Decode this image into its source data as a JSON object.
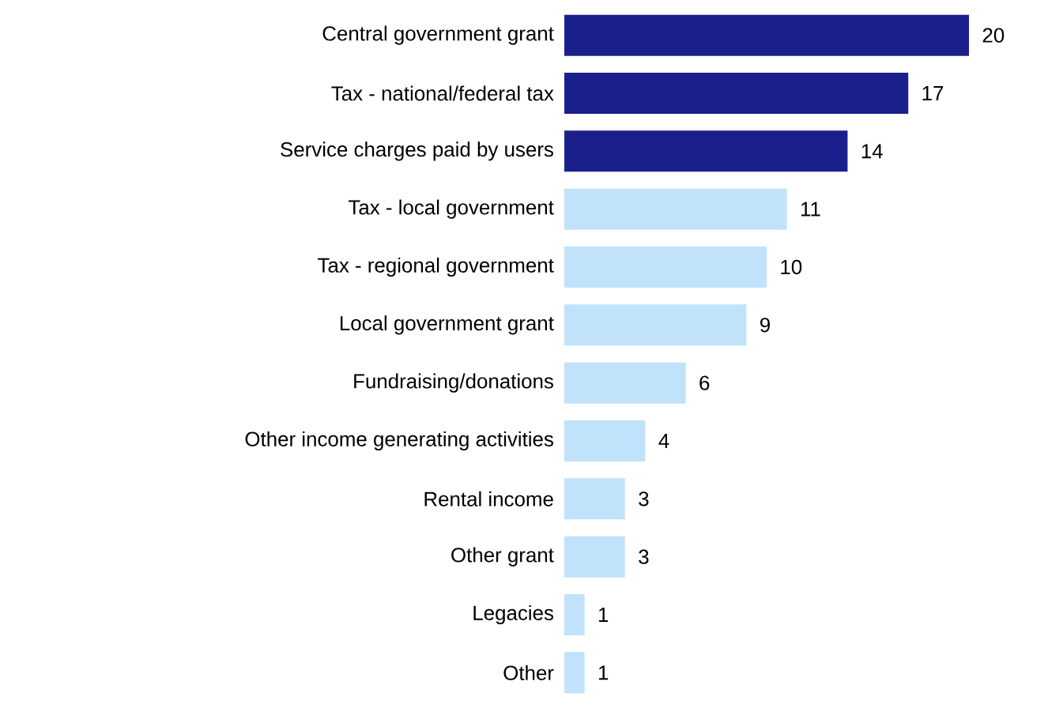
{
  "chart_data": {
    "type": "bar",
    "orientation": "horizontal",
    "data_labels": true,
    "categories": [
      "Central government grant",
      "Tax - national/federal tax",
      "Service charges paid by users",
      "Tax - local government",
      "Tax - regional government",
      "Local government grant",
      "Fundraising/donations",
      "Other income generating activities",
      "Rental income",
      "Other grant",
      "Legacies",
      "Other"
    ],
    "values": [
      20,
      17,
      14,
      11,
      10,
      9,
      6,
      4,
      3,
      3,
      1,
      1
    ],
    "colors": [
      "#1a1f8c",
      "#1a1f8c",
      "#1a1f8c",
      "#c0e2fa",
      "#c0e2fa",
      "#c0e2fa",
      "#c0e2fa",
      "#c0e2fa",
      "#c0e2fa",
      "#c0e2fa",
      "#c0e2fa",
      "#c0e2fa"
    ]
  }
}
